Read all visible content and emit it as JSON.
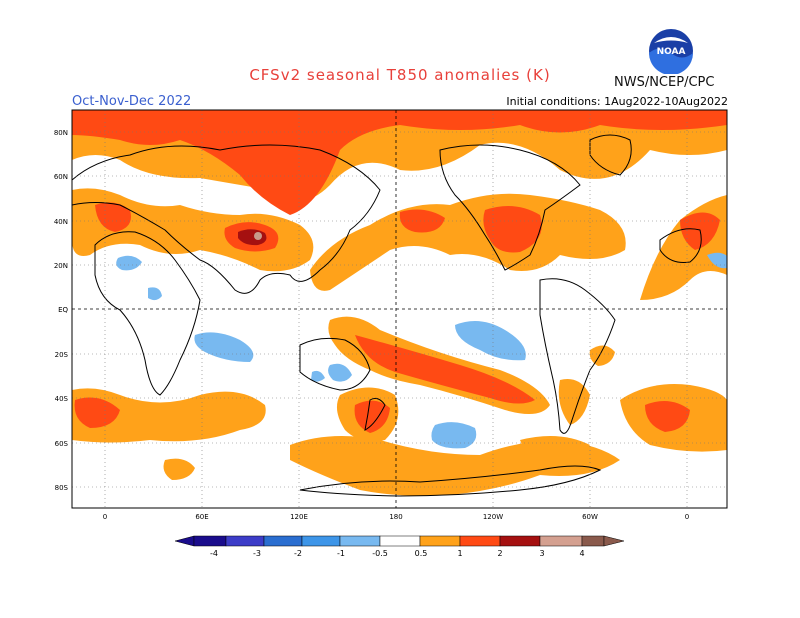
{
  "header": {
    "title": "CFSv2 seasonal T850 anomalies (K)",
    "season": "Oct-Nov-Dec 2022",
    "initial_conditions": "Initial conditions: 1Aug2022-10Aug2022",
    "agency": "NWS/NCEP/CPC",
    "logo_text": "NOAA",
    "logo_icon": "noaa-logo-icon"
  },
  "map": {
    "lat_labels": [
      "80N",
      "60N",
      "40N",
      "20N",
      "EQ",
      "20S",
      "40S",
      "60S",
      "80S"
    ],
    "lon_labels": [
      "0",
      "60E",
      "120E",
      "180",
      "120W",
      "60W",
      "0"
    ],
    "grid": "dotted"
  },
  "legend": {
    "labels": [
      "-4",
      "-3",
      "-2",
      "-1",
      "-0.5",
      "0.5",
      "1",
      "2",
      "3",
      "4"
    ],
    "colors": [
      "#1a0c8c",
      "#3c3cc8",
      "#2a6ed0",
      "#3d95e8",
      "#78b9f0",
      "#ffffff",
      "#ffa21a",
      "#ff4a14",
      "#a51010",
      "#d4a090",
      "#8a5a4c"
    ]
  },
  "colors": {
    "warm_05": "#ffa21a",
    "warm_1": "#ff4a14",
    "warm_2": "#a51010",
    "warm_3": "#c89a8a",
    "cool_05": "#78b9f0",
    "title_red": "#e8403a",
    "season_blue": "#3a5fcf"
  }
}
